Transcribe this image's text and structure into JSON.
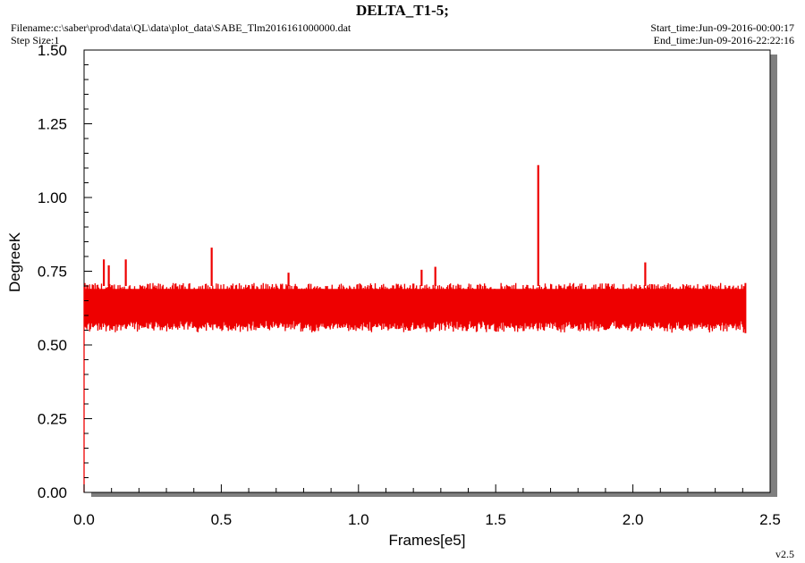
{
  "header": {
    "title": "DELTA_T1-5;",
    "filename": "Filename:c:\\saber\\prod\\data\\QL\\data\\plot_data\\SABE_Tlm2016161000000.dat",
    "step_size": "Step Size:1",
    "start_time": "Start_time:Jun-09-2016-00:00:17",
    "end_time": "End_time:Jun-09-2016-22:22:16"
  },
  "footer": {
    "version": "v2.5"
  },
  "colors": {
    "series": "#ee0000",
    "frame": "#000000",
    "shadow": "#7f7f7f"
  },
  "chart_data": {
    "type": "line",
    "title": "DELTA_T1-5;",
    "xlabel": "Frames[e5]",
    "ylabel": "DegreeK",
    "xlim": [
      0,
      2.5
    ],
    "ylim": [
      0,
      1.5
    ],
    "xticks": [
      "0.0",
      "0.5",
      "1.0",
      "1.5",
      "2.0",
      "2.5"
    ],
    "yticks": [
      "0.00",
      "0.25",
      "0.50",
      "0.75",
      "1.00",
      "1.25",
      "1.50"
    ],
    "grid": false,
    "series": [
      {
        "color": "#ee0000",
        "x_range": [
          0,
          2.41
        ],
        "band_low": 0.56,
        "band_high": 0.71,
        "min": 0.54,
        "start_value": 0.0,
        "spikes": [
          {
            "x": 0.072,
            "y": 0.79
          },
          {
            "x": 0.09,
            "y": 0.77
          },
          {
            "x": 0.152,
            "y": 0.79
          },
          {
            "x": 0.465,
            "y": 0.83
          },
          {
            "x": 0.745,
            "y": 0.745
          },
          {
            "x": 1.23,
            "y": 0.755
          },
          {
            "x": 1.28,
            "y": 0.765
          },
          {
            "x": 1.655,
            "y": 1.11
          },
          {
            "x": 2.045,
            "y": 0.78
          }
        ]
      }
    ]
  }
}
